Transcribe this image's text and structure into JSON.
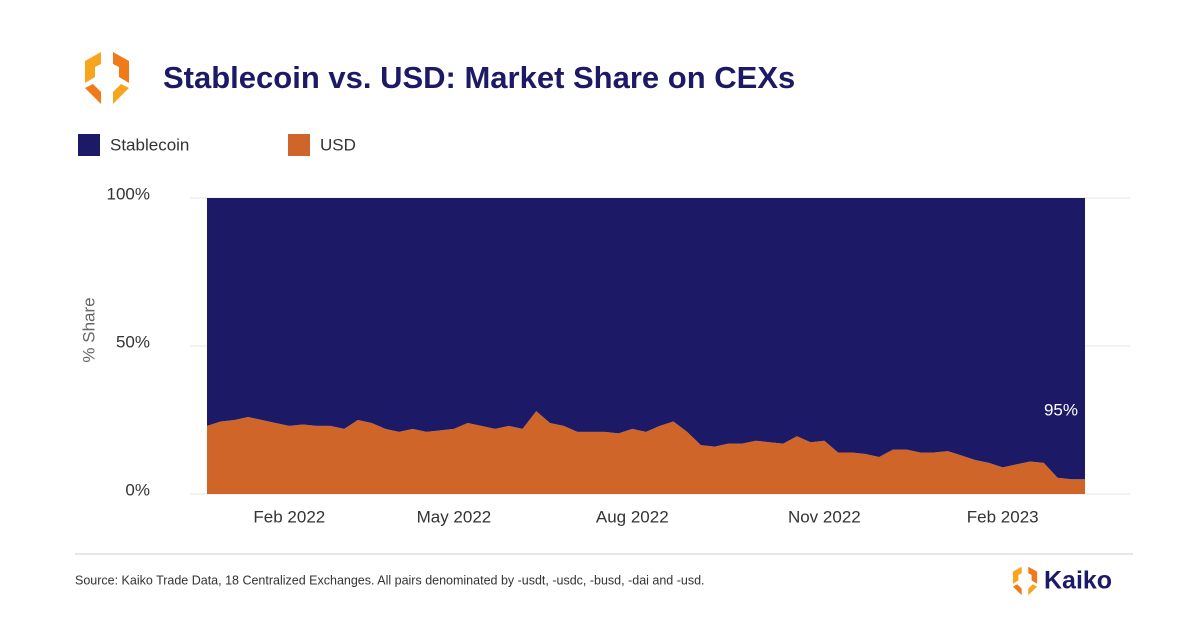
{
  "title": "Stablecoin vs. USD: Market Share on CEXs",
  "source": "Source: Kaiko Trade Data, 18 Centralized Exchanges. All pairs denominated by -usdt, -usdc, -busd, -dai and -usd.",
  "brand": "Kaiko",
  "chart_data": {
    "type": "stacked_area",
    "ylabel": "% Share",
    "categories": [
      null,
      null,
      null,
      null,
      null,
      null,
      "Feb 2022",
      null,
      null,
      null,
      null,
      null,
      null,
      null,
      null,
      null,
      null,
      null,
      "May 2022",
      null,
      null,
      null,
      null,
      null,
      null,
      null,
      null,
      null,
      null,
      null,
      null,
      "Aug 2022",
      null,
      null,
      null,
      null,
      null,
      null,
      null,
      null,
      null,
      null,
      null,
      null,
      null,
      "Nov 2022",
      null,
      null,
      null,
      null,
      null,
      null,
      null,
      null,
      null,
      null,
      null,
      null,
      "Feb 2023",
      null,
      null,
      null,
      null,
      null,
      null
    ],
    "series": [
      {
        "name": "Stablecoin",
        "color": "#1c1a66",
        "values": [
          77,
          75.5,
          75,
          74,
          75,
          76,
          77,
          76.5,
          77,
          77,
          78,
          75,
          76,
          78,
          79,
          78,
          79,
          78.5,
          78,
          76,
          77,
          78,
          77,
          78,
          72,
          76,
          77,
          79,
          79,
          79,
          79.5,
          78,
          79,
          77,
          75.5,
          79,
          83.5,
          84,
          83,
          83,
          82,
          82.5,
          83,
          80.5,
          82.5,
          82,
          86,
          86,
          86.5,
          87.5,
          85,
          85,
          86,
          86,
          85.5,
          87,
          88.5,
          89.5,
          91,
          90,
          89,
          89.5,
          94.5,
          95,
          95
        ],
        "value_labels": [
          null,
          null,
          null,
          null,
          null,
          null,
          null,
          null,
          null,
          null,
          null,
          null,
          null,
          null,
          null,
          null,
          null,
          null,
          null,
          null,
          null,
          null,
          null,
          null,
          null,
          null,
          null,
          null,
          null,
          null,
          null,
          null,
          null,
          null,
          null,
          null,
          null,
          null,
          null,
          null,
          null,
          null,
          null,
          null,
          null,
          null,
          null,
          null,
          null,
          null,
          null,
          null,
          null,
          null,
          null,
          null,
          null,
          null,
          null,
          null,
          null,
          null,
          null,
          null,
          "95%"
        ]
      },
      {
        "name": "USD",
        "color": "#d0652a",
        "values": [
          23,
          24.5,
          25,
          26,
          25,
          24,
          23,
          23.5,
          23,
          23,
          22,
          25,
          24,
          22,
          21,
          22,
          21,
          21.5,
          22,
          24,
          23,
          22,
          23,
          22,
          28,
          24,
          23,
          21,
          21,
          21,
          20.5,
          22,
          21,
          23,
          24.5,
          21,
          16.5,
          16,
          17,
          17,
          18,
          17.5,
          17,
          19.5,
          17.5,
          18,
          14,
          14,
          13.5,
          12.5,
          15,
          15,
          14,
          14,
          14.5,
          13,
          11.5,
          10.5,
          9,
          10,
          11,
          10.5,
          5.5,
          5,
          5
        ]
      }
    ],
    "ylim": [
      0,
      100
    ],
    "yticks": [
      {
        "value": 0,
        "label": "0%"
      },
      {
        "value": 50,
        "label": "50%"
      },
      {
        "value": 100,
        "label": "100%"
      }
    ],
    "grid": true
  }
}
